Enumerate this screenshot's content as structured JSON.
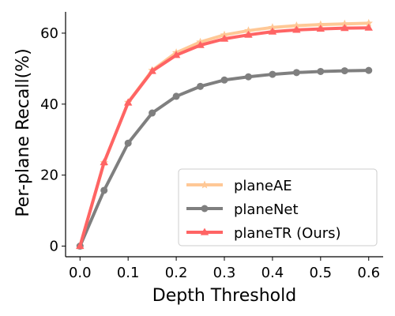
{
  "chart_data": {
    "type": "line",
    "xlabel": "Depth Threshold",
    "ylabel": "Per-plane Recall(%)",
    "xlim": [
      -0.03,
      0.63
    ],
    "ylim": [
      -3,
      66
    ],
    "xticks": [
      0.0,
      0.1,
      0.2,
      0.3,
      0.4,
      0.5,
      0.6
    ],
    "xtick_labels": [
      "0.0",
      "0.1",
      "0.2",
      "0.3",
      "0.4",
      "0.5",
      "0.6"
    ],
    "yticks": [
      0,
      20,
      40,
      60
    ],
    "ytick_labels": [
      "0",
      "20",
      "40",
      "60"
    ],
    "x": [
      0.0,
      0.05,
      0.1,
      0.15,
      0.2,
      0.25,
      0.3,
      0.35,
      0.4,
      0.45,
      0.5,
      0.55,
      0.6
    ],
    "legend_position": "lower-right",
    "grid": false,
    "series": [
      {
        "name": "planeAE",
        "color": "#ffc896",
        "marker": "star",
        "values": [
          0.0,
          23.5,
          40.5,
          49.5,
          54.5,
          57.5,
          59.5,
          60.7,
          61.6,
          62.1,
          62.4,
          62.6,
          62.8
        ]
      },
      {
        "name": "planeNet",
        "color": "#7f7f7f",
        "marker": "circle",
        "values": [
          0.0,
          15.7,
          29.0,
          37.5,
          42.2,
          45.0,
          46.8,
          47.7,
          48.4,
          48.9,
          49.2,
          49.4,
          49.5
        ]
      },
      {
        "name": "planeTR (Ours)",
        "color": "#ff6464",
        "marker": "triangle",
        "values": [
          0.0,
          23.6,
          40.4,
          49.3,
          53.8,
          56.6,
          58.4,
          59.5,
          60.4,
          60.9,
          61.2,
          61.4,
          61.5
        ]
      }
    ]
  }
}
